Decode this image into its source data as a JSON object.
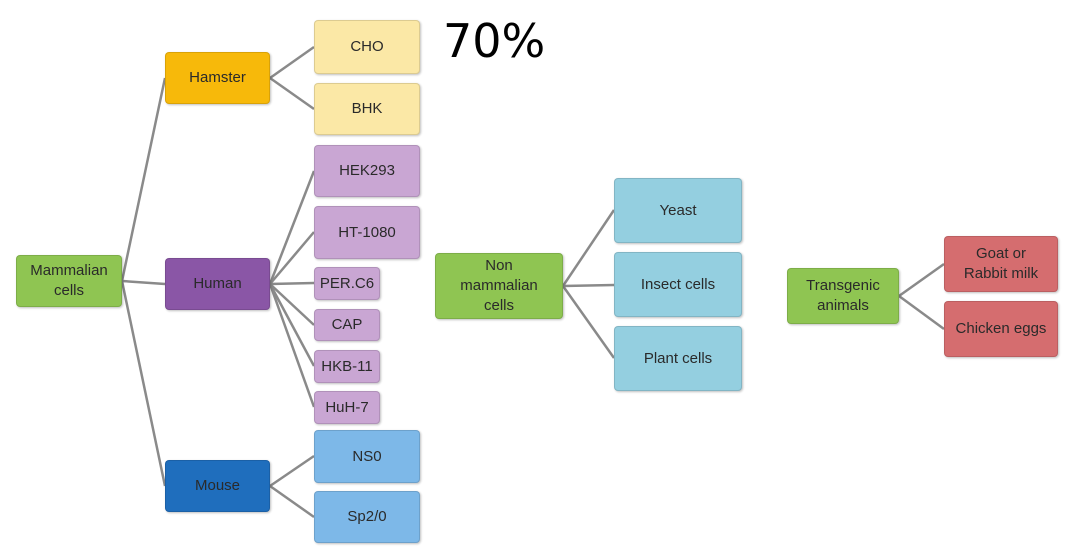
{
  "annotation": "70%",
  "colors": {
    "category_green": "#8fc552",
    "hamster": "#f7b90a",
    "hamster_children": "#fbe8a6",
    "human": "#8a56a6",
    "human_children": "#c9a6d3",
    "mouse": "#1f6ebd",
    "mouse_children": "#7db8e8",
    "non_mammalian_children": "#94cfe0",
    "transgenic_children": "#d56d6f",
    "connector": "#8a8a8a"
  },
  "mammalian": {
    "label": "Mammalian cells",
    "hamster": {
      "label": "Hamster",
      "children": [
        "CHO",
        "BHK"
      ]
    },
    "human": {
      "label": "Human",
      "children": [
        "HEK293",
        "HT-1080",
        "PER.C6",
        "CAP",
        "HKB-11",
        "HuH-7"
      ]
    },
    "mouse": {
      "label": "Mouse",
      "children": [
        "NS0",
        "Sp2/0"
      ]
    }
  },
  "non_mammalian": {
    "label": "Non mammalian cells",
    "children": [
      "Yeast",
      "Insect cells",
      "Plant cells"
    ]
  },
  "transgenic": {
    "label": "Transgenic animals",
    "children": [
      "Goat or Rabbit milk",
      "Chicken eggs"
    ]
  }
}
